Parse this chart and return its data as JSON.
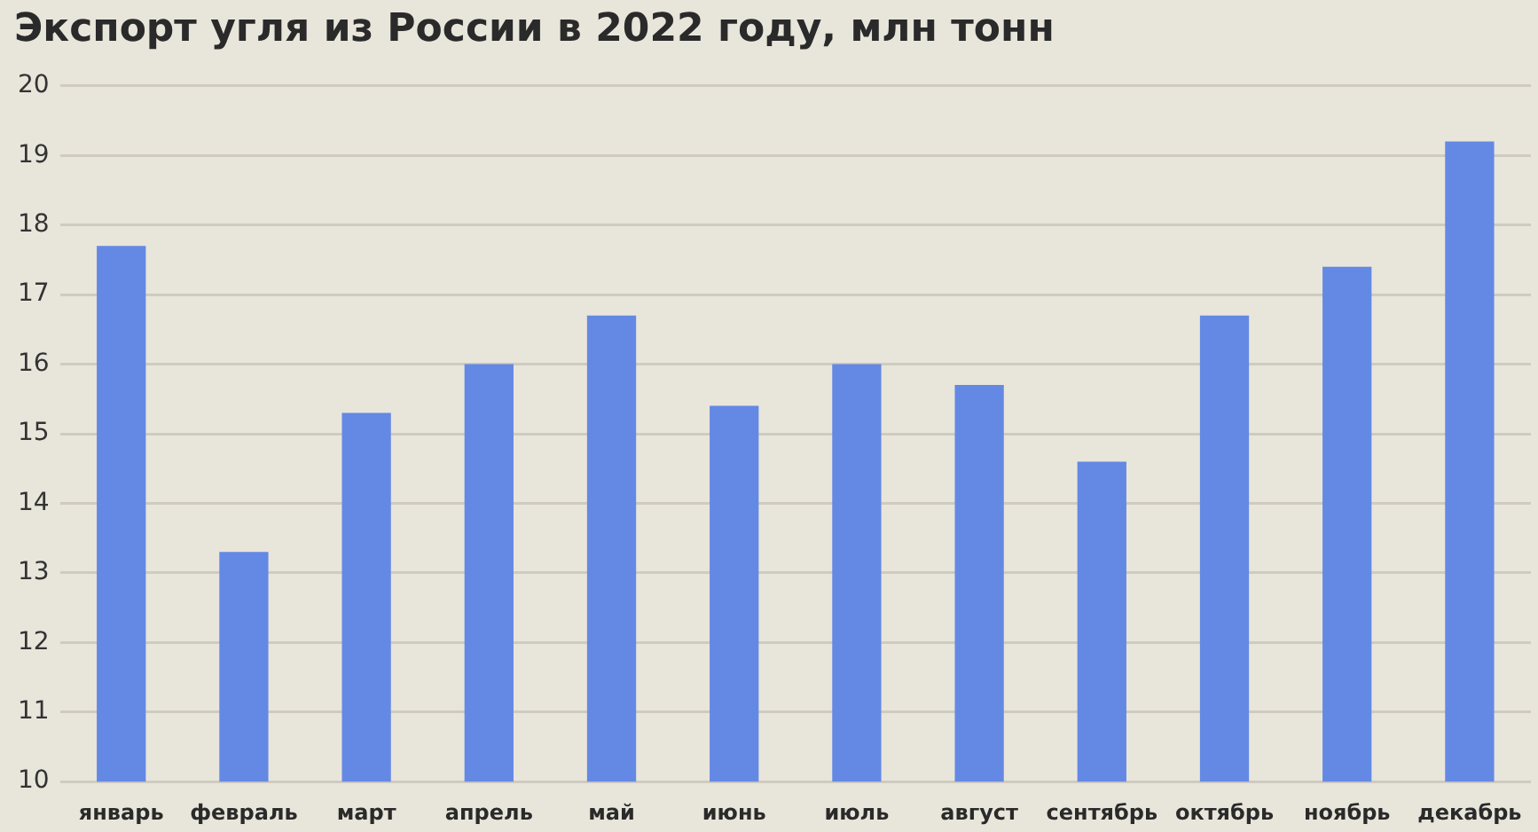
{
  "chart_data": {
    "type": "bar",
    "title": "Экспорт угля из России в 2022 году, млн тонн",
    "categories": [
      "январь",
      "февраль",
      "март",
      "апрель",
      "май",
      "июнь",
      "июль",
      "август",
      "сентябрь",
      "октябрь",
      "ноябрь",
      "декабрь"
    ],
    "values": [
      17.7,
      13.3,
      15.3,
      16.0,
      16.7,
      15.4,
      16.0,
      15.7,
      14.6,
      16.7,
      17.4,
      19.2
    ],
    "color": "#6489e4",
    "ylim": [
      10,
      20
    ],
    "yticks": [
      10,
      11,
      12,
      13,
      14,
      15,
      16,
      17,
      18,
      19,
      20
    ],
    "grid": "y"
  }
}
